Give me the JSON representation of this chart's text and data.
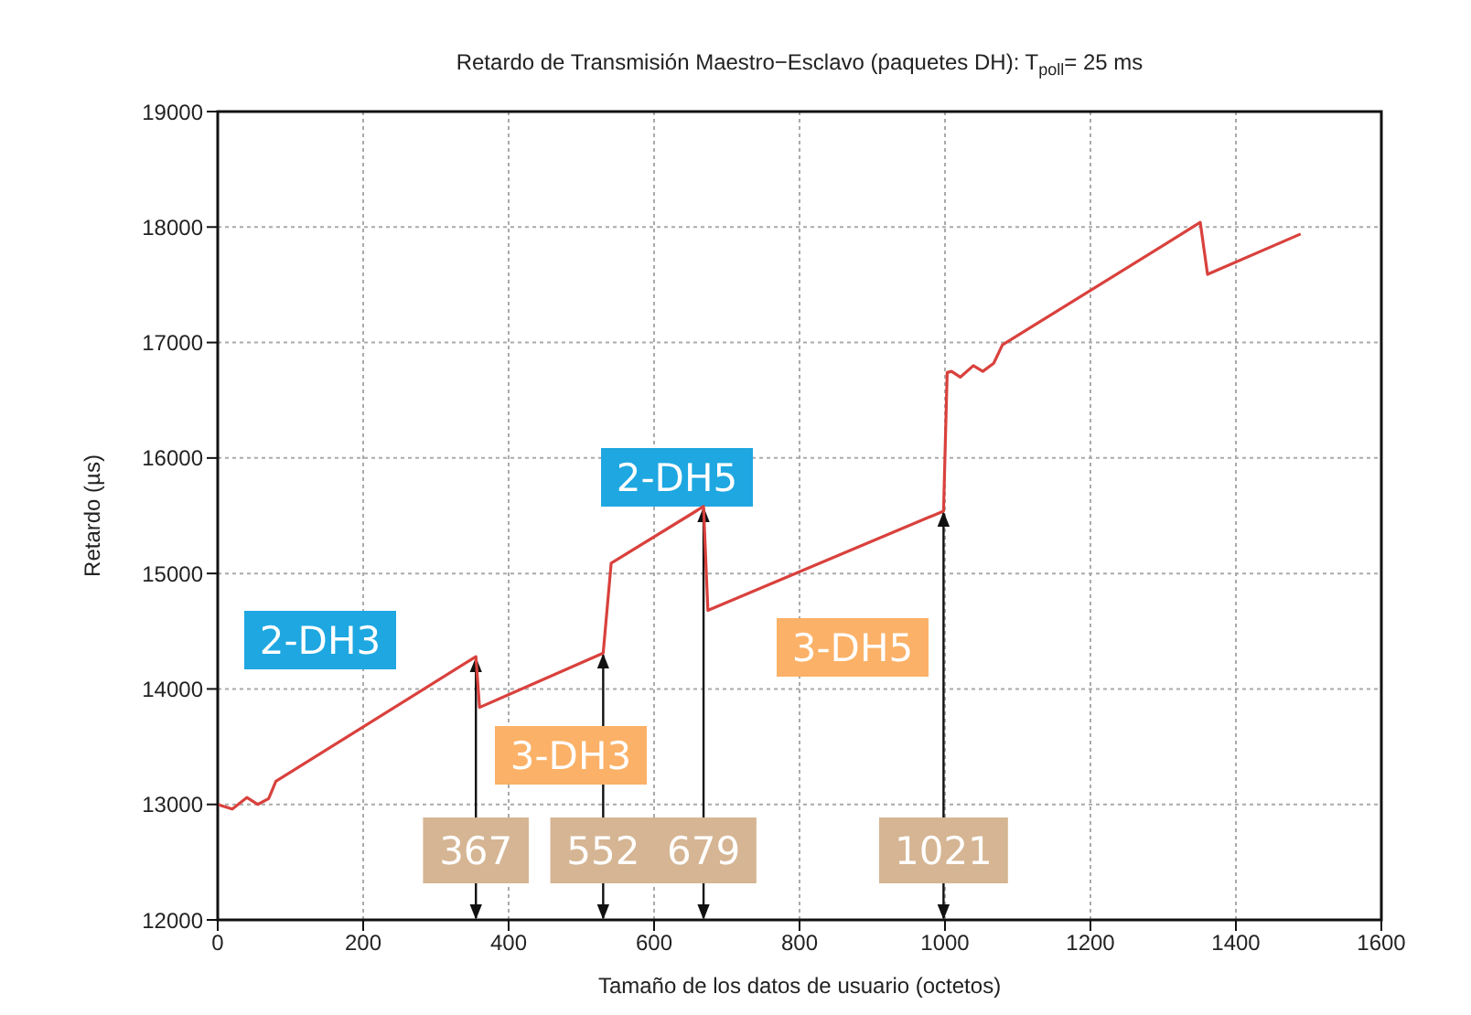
{
  "chart_data": {
    "type": "line",
    "title": "Retardo de Transmisión Maestro−Esclavo (paquetes DH): T$_{poll}$= 25 ms",
    "xlabel": "Tamaño de los datos de usuario (octetos)",
    "ylabel": "Retardo (µs)",
    "x": [
      0,
      20,
      40,
      55,
      70,
      80,
      355,
      360,
      530,
      541,
      668,
      674,
      998,
      1003,
      1009,
      1021,
      1039,
      1052,
      1067,
      1079,
      1351,
      1361,
      1489
    ],
    "series": [
      {
        "color": "#d9413d",
        "values": [
          13000,
          12960,
          13060,
          13000,
          13050,
          13200,
          14280,
          13840,
          14310,
          15090,
          15580,
          14680,
          15540,
          16740,
          16750,
          16700,
          16800,
          16750,
          16820,
          16980,
          18040,
          17590,
          17940
        ]
      }
    ],
    "xlim": [
      0,
      1600
    ],
    "xticks": [
      0,
      200,
      400,
      600,
      800,
      1000,
      1200,
      1400,
      1600
    ],
    "ylim": [
      12000,
      19000
    ],
    "yticks": [
      12000,
      13000,
      14000,
      15000,
      16000,
      17000,
      18000,
      19000
    ],
    "grid": true,
    "legend": false,
    "marker": "none",
    "line_style": "solid",
    "annotations": [
      "2-DH3",
      "2-DH5",
      "3-DH3",
      "3-DH5",
      {
        "text": "367",
        "x": 355,
        "y": 14280
      },
      {
        "text": "552",
        "x": 530,
        "y": 14310
      },
      {
        "text": "679",
        "x": 668,
        "y": 15580
      },
      {
        "text": "1021",
        "x": 998,
        "y": 15540
      }
    ]
  }
}
